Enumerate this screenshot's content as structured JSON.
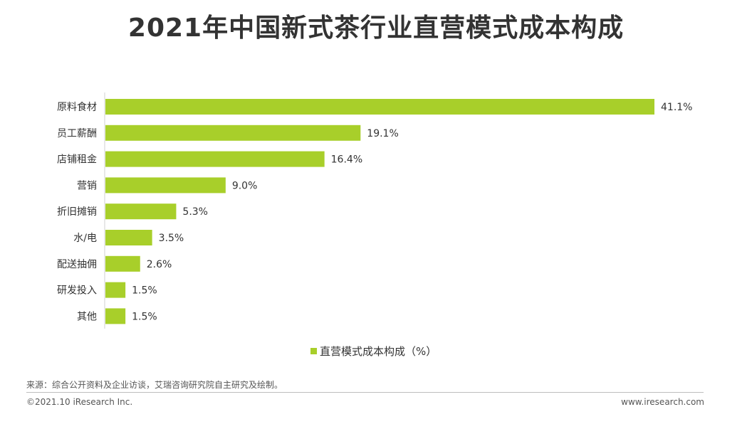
{
  "title": "2021年中国新式茶行业直营模式成本构成",
  "chart_data": {
    "type": "bar",
    "orientation": "horizontal",
    "categories": [
      "原料食材",
      "员工薪酬",
      "店铺租金",
      "营销",
      "折旧摊销",
      "水/电",
      "配送抽佣",
      "研发投入",
      "其他"
    ],
    "series": [
      {
        "name": "直营模式成本构成（%）",
        "values": [
          41.1,
          19.1,
          16.4,
          9.0,
          5.3,
          3.5,
          2.6,
          1.5,
          1.5
        ]
      }
    ],
    "value_labels": [
      "41.1%",
      "19.1%",
      "16.4%",
      "9.0%",
      "5.3%",
      "3.5%",
      "2.6%",
      "1.5%",
      "1.5%"
    ],
    "xlim": [
      0,
      41.1
    ],
    "grid": false,
    "legend_position": "bottom",
    "bar_color": "#a8cf2a"
  },
  "legend": {
    "label": "直营模式成本构成（%）"
  },
  "footer": {
    "source": "来源：综合公开资料及企业访谈，艾瑞咨询研究院自主研究及绘制。",
    "copyright": "©2021.10 iResearch Inc.",
    "website": "www.iresearch.com"
  }
}
